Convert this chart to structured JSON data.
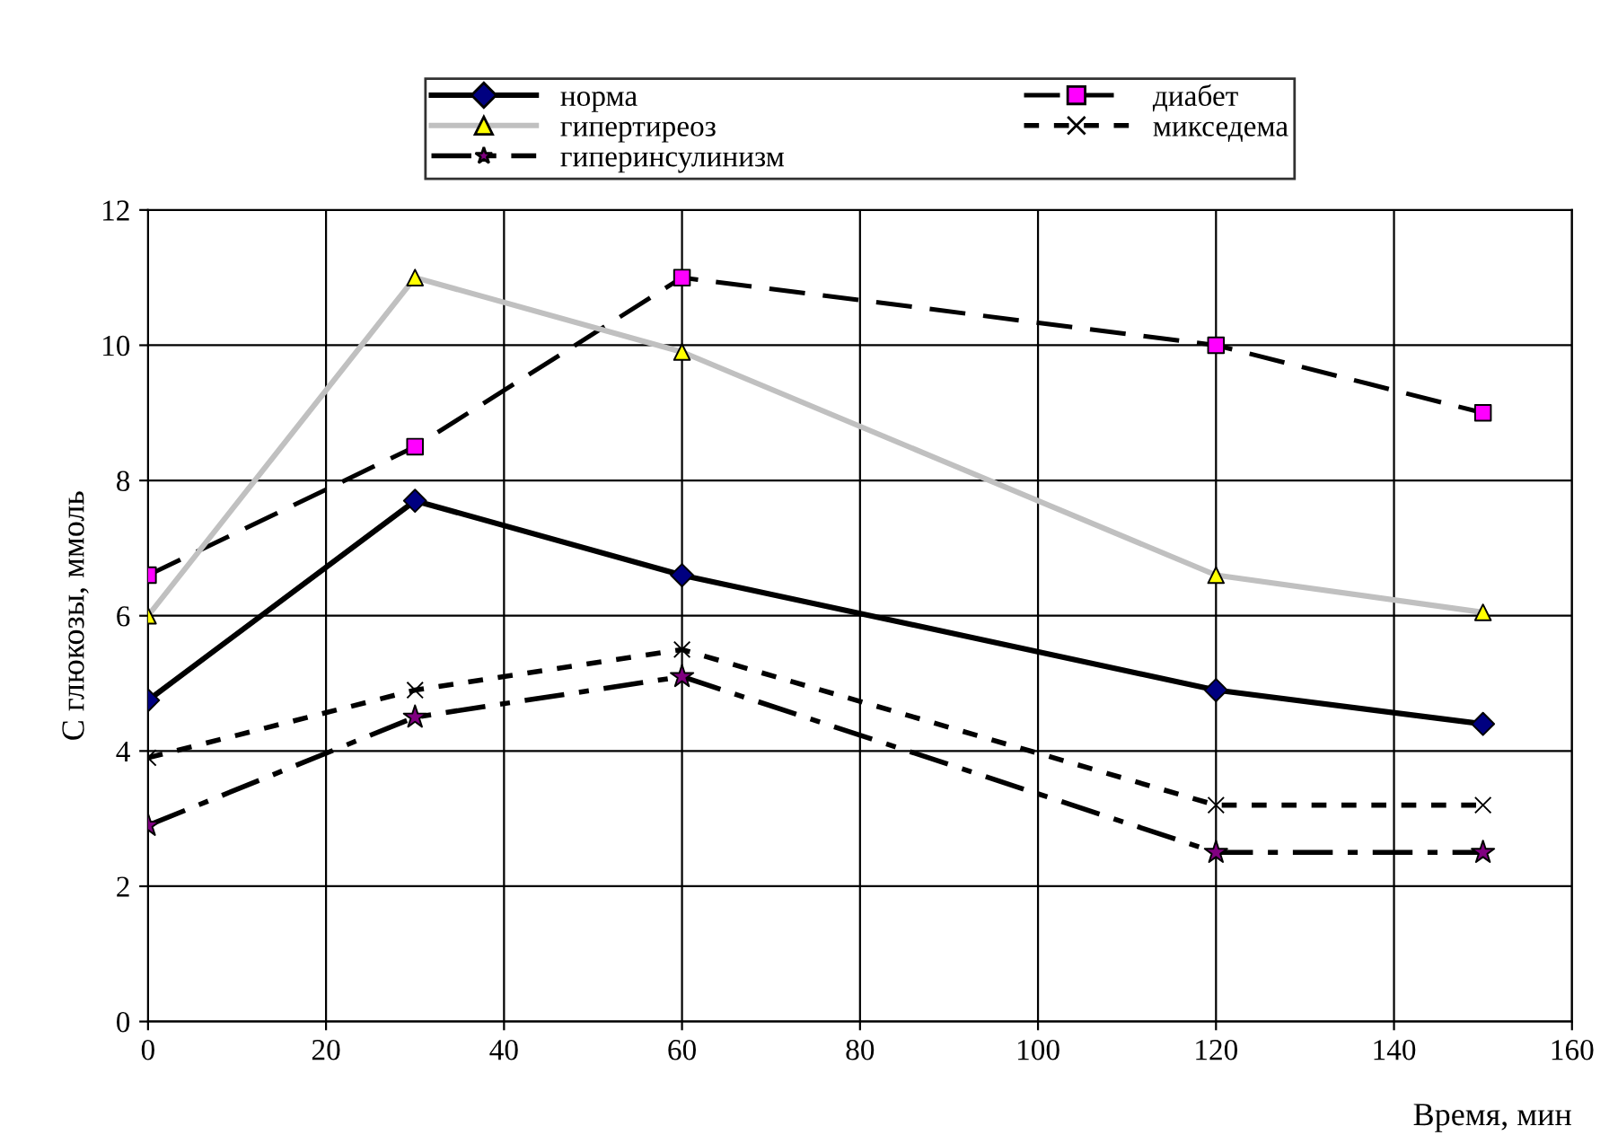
{
  "chart_data": {
    "type": "line",
    "xlabel": "Время, мин",
    "ylabel": "С глюкозы, ммоль",
    "x": [
      0,
      30,
      60,
      120,
      150
    ],
    "series": [
      {
        "name": "норма",
        "color": "#000000",
        "colors": [
          "#000080",
          "#000080",
          "#000080",
          "#000080",
          "#000080"
        ],
        "marker": "diamond",
        "line_style": "solid",
        "values": [
          4.75,
          7.7,
          6.6,
          4.9,
          4.4
        ]
      },
      {
        "name": "диабет",
        "color": "#000000",
        "colors": [
          "#ff00ff",
          "#ff00ff",
          "#ff00ff",
          "#ff00ff",
          "#ff00ff"
        ],
        "marker": "square",
        "line_style": "dashed",
        "values": [
          6.6,
          8.5,
          11.0,
          10.0,
          9.0
        ]
      },
      {
        "name": "гипертиреоз",
        "color": "#c0c0c0",
        "colors": [
          "#ffff00",
          "#ffff00",
          "#ffff00",
          "#ffff00",
          "#ffff00"
        ],
        "marker": "triangle",
        "line_style": "solid",
        "values": [
          6.0,
          11.0,
          9.9,
          6.6,
          6.05
        ]
      },
      {
        "name": "микседема",
        "color": "#000000",
        "colors": [
          "#000000",
          "#000000",
          "#000000",
          "#000000",
          "#000000"
        ],
        "marker": "cross",
        "line_style": "dotted",
        "values": [
          3.9,
          4.9,
          5.5,
          3.2,
          3.2
        ]
      },
      {
        "name": "гиперинсулинизм",
        "color": "#000000",
        "colors": [
          "#800080",
          "#800080",
          "#800080",
          "#800080",
          "#800080"
        ],
        "marker": "star",
        "line_style": "dashdot",
        "values": [
          2.9,
          4.5,
          5.1,
          2.5,
          2.5
        ]
      }
    ],
    "xlim": [
      0,
      160
    ],
    "xticks": [
      0,
      20,
      40,
      60,
      80,
      100,
      120,
      140,
      160
    ],
    "ylim": [
      0,
      12
    ],
    "yticks": [
      0,
      2,
      4,
      6,
      8,
      10,
      12
    ],
    "grid": true,
    "legend": "top"
  }
}
